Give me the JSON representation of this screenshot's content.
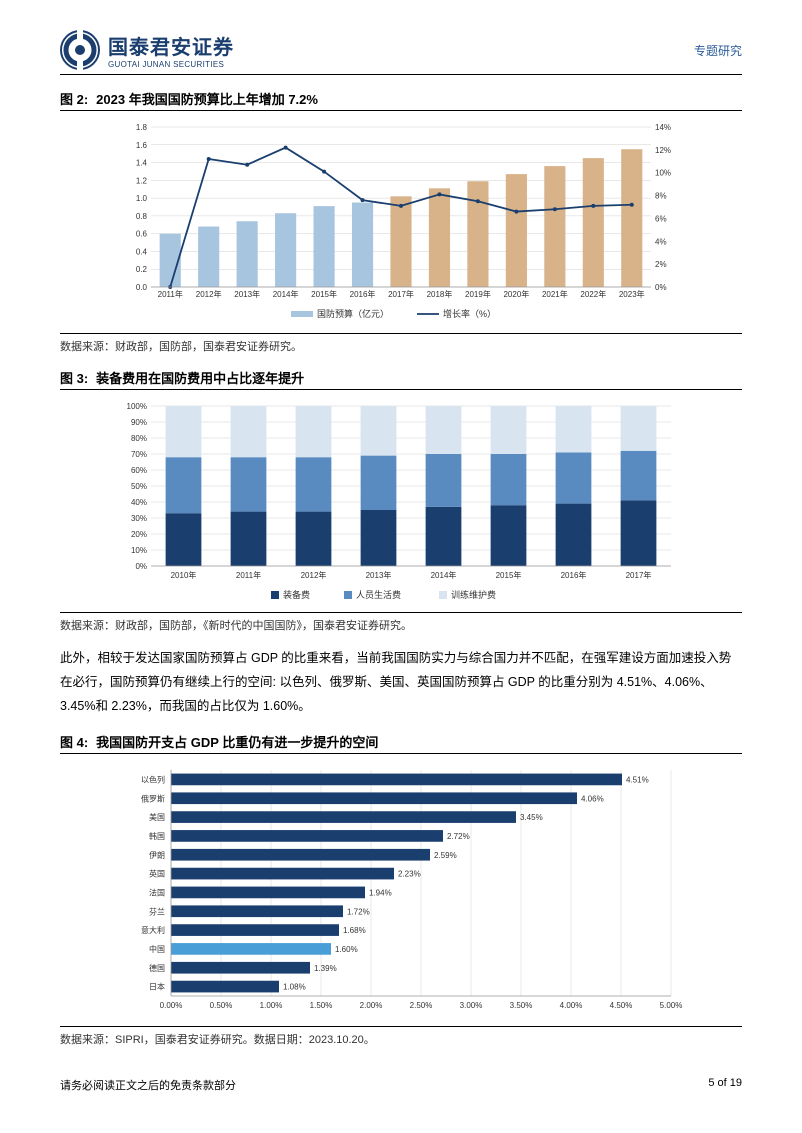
{
  "header": {
    "logo_cn": "国泰君安证券",
    "logo_en": "GUOTAI JUNAN SECURITIES",
    "right_text": "专题研究"
  },
  "fig2": {
    "label": "图 2:",
    "title": "2023 年我国国防预算比上年增加 7.2%",
    "type": "bar+line",
    "categories": [
      "2011年",
      "2012年",
      "2013年",
      "2014年",
      "2015年",
      "2016年",
      "2017年",
      "2018年",
      "2019年",
      "2020年",
      "2021年",
      "2022年",
      "2023年"
    ],
    "bars": [
      0.6,
      0.68,
      0.74,
      0.83,
      0.91,
      0.95,
      1.02,
      1.11,
      1.19,
      1.27,
      1.36,
      1.45,
      1.55
    ],
    "bar_colors": [
      "#a8c5e0",
      "#a8c5e0",
      "#a8c5e0",
      "#a8c5e0",
      "#a8c5e0",
      "#a8c5e0",
      "#d8b38a",
      "#d8b38a",
      "#d8b38a",
      "#d8b38a",
      "#d8b38a",
      "#d8b38a",
      "#d8b38a"
    ],
    "line": [
      0,
      11.2,
      10.7,
      12.2,
      10.1,
      7.6,
      7.1,
      8.1,
      7.5,
      6.6,
      6.8,
      7.1,
      7.2
    ],
    "line_color": "#1a3e6e",
    "y_left": {
      "min": 0,
      "max": 1.8,
      "step": 0.2
    },
    "y_right": {
      "min": 0,
      "max": 14,
      "step": 2,
      "suffix": "%"
    },
    "legend": [
      {
        "label": "国防预算（亿元）",
        "color": "#a8c5e0",
        "type": "bar"
      },
      {
        "label": "增长率（%）",
        "color": "#1a3e6e",
        "type": "line"
      }
    ],
    "grid_color": "#d0d0d0",
    "source": "数据来源：财政部，国防部，国泰君安证券研究。"
  },
  "fig3": {
    "label": "图 3:",
    "title": "装备费用在国防费用中占比逐年提升",
    "type": "stacked-bar",
    "categories": [
      "2010年",
      "2011年",
      "2012年",
      "2013年",
      "2014年",
      "2015年",
      "2016年",
      "2017年"
    ],
    "series": [
      {
        "name": "装备费",
        "color": "#1a3e6e",
        "values": [
          33,
          34,
          34,
          35,
          37,
          38,
          39,
          41
        ]
      },
      {
        "name": "人员生活费",
        "color": "#5a8bc0",
        "values": [
          35,
          34,
          34,
          34,
          33,
          32,
          32,
          31
        ]
      },
      {
        "name": "训练维护费",
        "color": "#d8e4f0",
        "values": [
          32,
          32,
          32,
          31,
          30,
          30,
          29,
          28
        ]
      }
    ],
    "y": {
      "min": 0,
      "max": 100,
      "step": 10,
      "suffix": "%"
    },
    "grid_color": "#d0d0d0",
    "source": "数据来源：财政部，国防部，《新时代的中国国防》，国泰君安证券研究。"
  },
  "body_para": "此外，相较于发达国家国防预算占 GDP 的比重来看，当前我国国防实力与综合国力并不匹配，在强军建设方面加速投入势在必行，国防预算仍有继续上行的空间: 以色列、俄罗斯、美国、英国国防预算占 GDP 的比重分别为 4.51%、4.06%、3.45%和 2.23%，而我国的占比仅为 1.60%。",
  "fig4": {
    "label": "图 4:",
    "title": "我国国防开支占 GDP 比重仍有进一步提升的空间",
    "type": "horizontal-bar",
    "x": {
      "min": 0,
      "max": 5.0,
      "step": 0.5,
      "suffix": "%",
      "format": "0.00%"
    },
    "items": [
      {
        "name": "以色列",
        "value": 4.51,
        "color": "#1a3e6e"
      },
      {
        "name": "俄罗斯",
        "value": 4.06,
        "color": "#1a3e6e"
      },
      {
        "name": "美国",
        "value": 3.45,
        "color": "#1a3e6e"
      },
      {
        "name": "韩国",
        "value": 2.72,
        "color": "#1a3e6e"
      },
      {
        "name": "伊朗",
        "value": 2.59,
        "color": "#1a3e6e"
      },
      {
        "name": "英国",
        "value": 2.23,
        "color": "#1a3e6e"
      },
      {
        "name": "法国",
        "value": 1.94,
        "color": "#1a3e6e"
      },
      {
        "name": "芬兰",
        "value": 1.72,
        "color": "#1a3e6e"
      },
      {
        "name": "意大利",
        "value": 1.68,
        "color": "#1a3e6e"
      },
      {
        "name": "中国",
        "value": 1.6,
        "color": "#4a9ed8"
      },
      {
        "name": "德国",
        "value": 1.39,
        "color": "#1a3e6e"
      },
      {
        "name": "日本",
        "value": 1.08,
        "color": "#1a3e6e"
      }
    ],
    "grid_color": "#d0d0d0",
    "source": "数据来源：SIPRI，国泰君安证券研究。数据日期：2023.10.20。"
  },
  "footer": {
    "left": "请务必阅读正文之后的免责条款部分",
    "right": "5 of 19"
  }
}
